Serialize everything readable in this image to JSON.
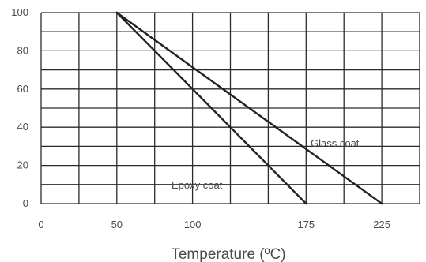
{
  "chart_data": {
    "type": "line",
    "title": "",
    "xlabel": "Temperature (ºC)",
    "ylabel": "",
    "xlim": [
      0,
      250
    ],
    "ylim": [
      0,
      100
    ],
    "x_ticks": [
      0,
      50,
      100,
      175,
      225
    ],
    "y_ticks": [
      0,
      20,
      40,
      60,
      80,
      100
    ],
    "grid": true,
    "series": [
      {
        "name": "Epoxy coat",
        "x": [
          50,
          175
        ],
        "y": [
          100,
          0
        ]
      },
      {
        "name": "Glass coat",
        "x": [
          50,
          225
        ],
        "y": [
          100,
          0
        ]
      }
    ]
  },
  "colors": {
    "line": "#222222",
    "grid": "#2b2b2b",
    "text": "#4a4a4a"
  }
}
